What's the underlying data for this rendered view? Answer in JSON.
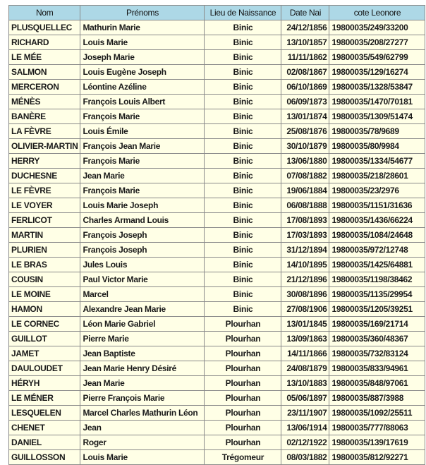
{
  "table": {
    "headers": [
      "Nom",
      "Prénoms",
      "Lieu de Naissance",
      "Date Nai",
      "cote Leonore"
    ],
    "rows": [
      [
        "PLUSQUELLEC",
        "Mathurin Marie",
        "Binic",
        "24/12/1856",
        "19800035/249/33200"
      ],
      [
        "RICHARD",
        "Louis Marie",
        "Binic",
        "13/10/1857",
        "19800035/208/27277"
      ],
      [
        "LE MÉE",
        "Joseph Marie",
        "Binic",
        "11/11/1862",
        "19800035/549/62799"
      ],
      [
        "SALMON",
        "Louis Eugène Joseph",
        "Binic",
        "02/08/1867",
        "19800035/129/16274"
      ],
      [
        "MERCERON",
        "Léontine Azéline",
        "Binic",
        "06/10/1869",
        "19800035/1328/53847"
      ],
      [
        "MÉNÈS",
        "François Louis Albert",
        "Binic",
        "06/09/1873",
        "19800035/1470/70181"
      ],
      [
        "BANÈRE",
        "François Marie",
        "Binic",
        "13/01/1874",
        "19800035/1309/51474"
      ],
      [
        "LA FÈVRE",
        "Louis Émile",
        "Binic",
        "25/08/1876",
        "19800035/78/9689"
      ],
      [
        "OLIVIER-MARTIN",
        "François Jean Marie",
        "Binic",
        "30/10/1879",
        "19800035/80/9984"
      ],
      [
        "HERRY",
        "François Marie",
        "Binic",
        "13/06/1880",
        "19800035/1334/54677"
      ],
      [
        "DUCHESNE",
        "Jean Marie",
        "Binic",
        "07/08/1882",
        "19800035/218/28601"
      ],
      [
        "LE FÈVRE",
        "François Marie",
        "Binic",
        "19/06/1884",
        "19800035/23/2976"
      ],
      [
        "LE VOYER",
        "Louis Marie Joseph",
        "Binic",
        "06/08/1888",
        "19800035/1151/31636"
      ],
      [
        "FERLICOT",
        "Charles Armand Louis",
        "Binic",
        "17/08/1893",
        "19800035/1436/66224"
      ],
      [
        "MARTIN",
        "François Joseph",
        "Binic",
        "17/03/1893",
        "19800035/1084/24648"
      ],
      [
        "PLURIEN",
        "François Joseph",
        "Binic",
        "31/12/1894",
        "19800035/972/12748"
      ],
      [
        "LE BRAS",
        "Jules Louis",
        "Binic",
        "14/10/1895",
        "19800035/1425/64881"
      ],
      [
        "COUSIN",
        "Paul Victor Marie",
        "Binic",
        "21/12/1896",
        "19800035/1198/38462"
      ],
      [
        "LE MOINE",
        "Marcel",
        "Binic",
        "30/08/1896",
        "19800035/1135/29954"
      ],
      [
        "HAMON",
        "Alexandre Jean Marie",
        "Binic",
        "27/08/1906",
        "19800035/1205/39251"
      ],
      [
        "LE CORNEC",
        "Léon Marie Gabriel",
        "Plourhan",
        "13/01/1845",
        "19800035/169/21714"
      ],
      [
        "GUILLOT",
        "Pierre Marie",
        "Plourhan",
        "13/09/1863",
        "19800035/360/48367"
      ],
      [
        "JAMET",
        "Jean Baptiste",
        "Plourhan",
        "14/11/1866",
        "19800035/732/83124"
      ],
      [
        "DAULOUDET",
        "Jean Marie Henry Désiré",
        "Plourhan",
        "24/08/1879",
        "19800035/833/94961"
      ],
      [
        "HÉRYH",
        "Jean Marie",
        "Plourhan",
        "13/10/1883",
        "19800035/848/97061"
      ],
      [
        "LE MÉNER",
        "Pierre François Marie",
        "Plourhan",
        "05/06/1897",
        "19800035/887/3988"
      ],
      [
        "LESQUELEN",
        "Marcel Charles Mathurin Léon",
        "Plourhan",
        "23/11/1907",
        "19800035/1092/25511"
      ],
      [
        "CHENET",
        "Jean",
        "Plourhan",
        "13/06/1914",
        "19800035/777/88063"
      ],
      [
        "DANIEL",
        "Roger",
        "Plourhan",
        "02/12/1922",
        "19800035/139/17619"
      ],
      [
        "GUILLOSSON",
        "Louis Marie",
        "Trégomeur",
        "08/03/1882",
        "19800035/812/92271"
      ]
    ]
  },
  "colors": {
    "header_bg": "#add8e6",
    "cell_bg": "#ffffe6"
  }
}
